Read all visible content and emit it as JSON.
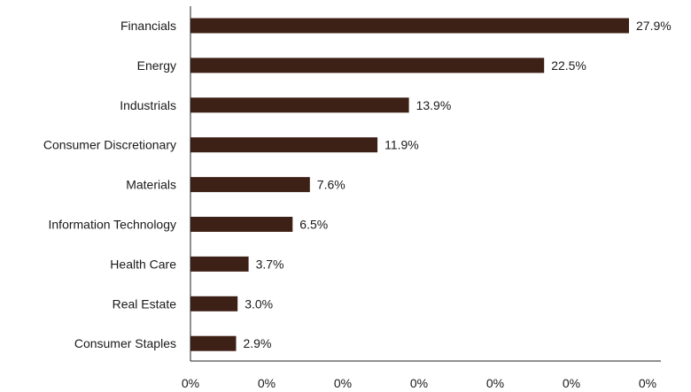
{
  "chart_data": {
    "type": "bar",
    "orientation": "horizontal",
    "categories": [
      "Financials",
      "Energy",
      "Industrials",
      "Consumer Discretionary",
      "Materials",
      "Information Technology",
      "Health Care",
      "Real Estate",
      "Consumer Staples"
    ],
    "values": [
      27.9,
      22.5,
      13.9,
      11.9,
      7.6,
      6.5,
      3.7,
      3.0,
      2.9
    ],
    "value_labels": [
      "27.9%",
      "22.5%",
      "13.9%",
      "11.9%",
      "7.6%",
      "6.5%",
      "3.7%",
      "3.0%",
      "2.9%"
    ],
    "x_tick_labels": [
      "0%",
      "0%",
      "0%",
      "0%",
      "0%",
      "0%",
      "0%"
    ],
    "xlim": [
      0,
      30
    ],
    "bar_color": "#3d2016",
    "grid": false,
    "legend": "none"
  }
}
